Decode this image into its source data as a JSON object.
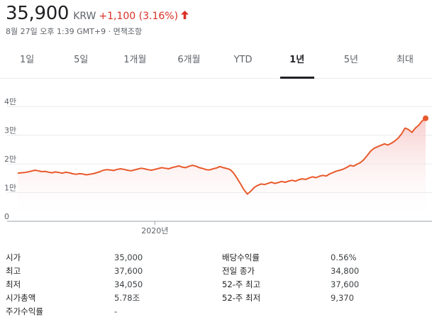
{
  "header": {
    "price": "35,900",
    "currency": "KRW",
    "change": "+1,100 (3.16%)",
    "arrow_icon": "up-arrow-icon",
    "timestamp": "8월 27일 오후 1:39 GMT+9 · 면책조항"
  },
  "tabs": [
    {
      "label": "1일",
      "active": false
    },
    {
      "label": "5일",
      "active": false
    },
    {
      "label": "1개월",
      "active": false
    },
    {
      "label": "6개월",
      "active": false
    },
    {
      "label": "YTD",
      "active": false
    },
    {
      "label": "1년",
      "active": true
    },
    {
      "label": "5년",
      "active": false
    },
    {
      "label": "최대",
      "active": false
    }
  ],
  "colors": {
    "line": "#e8592b",
    "fill": "#f6c4c4",
    "negative": "#d93025",
    "grid": "#e8eaed"
  },
  "chart_data": {
    "type": "area",
    "y_ticks": [
      {
        "value": 0,
        "label": "0"
      },
      {
        "value": 10000,
        "label": "1만"
      },
      {
        "value": 20000,
        "label": "2만"
      },
      {
        "value": 30000,
        "label": "3만"
      },
      {
        "value": 40000,
        "label": "4만"
      }
    ],
    "x_ticks": [
      {
        "index": 40,
        "label": "2020년"
      }
    ],
    "ylim": [
      0,
      45000
    ],
    "grid": true,
    "series": [
      {
        "values": [
          16800,
          16900,
          17000,
          17200,
          17500,
          17800,
          17600,
          17300,
          17400,
          17100,
          16900,
          17200,
          17000,
          16800,
          17100,
          16900,
          16600,
          16400,
          16600,
          16500,
          16200,
          16400,
          16600,
          16900,
          17300,
          17800,
          18000,
          17900,
          17700,
          18100,
          18300,
          18100,
          17800,
          17600,
          17900,
          18200,
          18500,
          18300,
          18000,
          17800,
          18100,
          18400,
          18700,
          18500,
          18300,
          18700,
          19000,
          19300,
          18900,
          18700,
          19200,
          19500,
          19200,
          18700,
          18400,
          18000,
          17900,
          18300,
          18600,
          19100,
          18700,
          18400,
          18000,
          16800,
          15000,
          13000,
          11000,
          9500,
          10500,
          11800,
          12500,
          13000,
          12800,
          13200,
          13600,
          13200,
          13500,
          13900,
          13600,
          14000,
          14300,
          14000,
          14500,
          14800,
          14600,
          15100,
          15500,
          15200,
          15700,
          16000,
          15800,
          16500,
          17000,
          17500,
          17800,
          18200,
          18800,
          19500,
          19200,
          19900,
          20500,
          21500,
          23000,
          24500,
          25500,
          26000,
          26500,
          27000,
          26600,
          27200,
          28000,
          29000,
          30500,
          32500,
          32000,
          31000,
          32500,
          33500,
          35000,
          35900
        ]
      }
    ]
  },
  "stats": [
    {
      "label": "시가",
      "value": "35,000",
      "label2": "배당수익률",
      "value2": "0.56%"
    },
    {
      "label": "최고",
      "value": "37,600",
      "label2": "전일 종가",
      "value2": "34,800"
    },
    {
      "label": "최저",
      "value": "34,050",
      "label2": "52-주 최고",
      "value2": "37,600"
    },
    {
      "label": "시가총액",
      "value": "5.78조",
      "label2": "52-주 최저",
      "value2": "9,370"
    },
    {
      "label": "주가수익률",
      "value": "-",
      "label2": "",
      "value2": ""
    }
  ]
}
